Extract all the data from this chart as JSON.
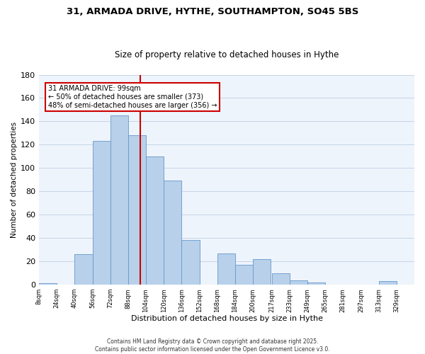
{
  "title": "31, ARMADA DRIVE, HYTHE, SOUTHAMPTON, SO45 5BS",
  "subtitle": "Size of property relative to detached houses in Hythe",
  "xlabel": "Distribution of detached houses by size in Hythe",
  "ylabel": "Number of detached properties",
  "bar_color": "#b8d0ea",
  "bar_edge_color": "#6699cc",
  "vline_x": 99,
  "vline_color": "#cc0000",
  "annotation_lines": [
    "31 ARMADA DRIVE: 99sqm",
    "← 50% of detached houses are smaller (373)",
    "48% of semi-detached houses are larger (356) →"
  ],
  "annotation_box_edge": "#cc0000",
  "bins": [
    8,
    24,
    40,
    56,
    72,
    88,
    104,
    120,
    136,
    152,
    168,
    184,
    200,
    217,
    233,
    249,
    265,
    281,
    297,
    313,
    329
  ],
  "counts": [
    1,
    0,
    26,
    123,
    145,
    128,
    110,
    89,
    38,
    0,
    27,
    17,
    22,
    10,
    4,
    2,
    0,
    0,
    0,
    3,
    0
  ],
  "tick_labels": [
    "8sqm",
    "24sqm",
    "40sqm",
    "56sqm",
    "72sqm",
    "88sqm",
    "104sqm",
    "120sqm",
    "136sqm",
    "152sqm",
    "168sqm",
    "184sqm",
    "200sqm",
    "217sqm",
    "233sqm",
    "249sqm",
    "265sqm",
    "281sqm",
    "297sqm",
    "313sqm",
    "329sqm"
  ],
  "ylim": [
    0,
    180
  ],
  "yticks": [
    0,
    20,
    40,
    60,
    80,
    100,
    120,
    140,
    160,
    180
  ],
  "footer_line1": "Contains HM Land Registry data © Crown copyright and database right 2025.",
  "footer_line2": "Contains public sector information licensed under the Open Government Licence v3.0.",
  "background_color": "#eef4fb",
  "grid_color": "#c5d5e8"
}
